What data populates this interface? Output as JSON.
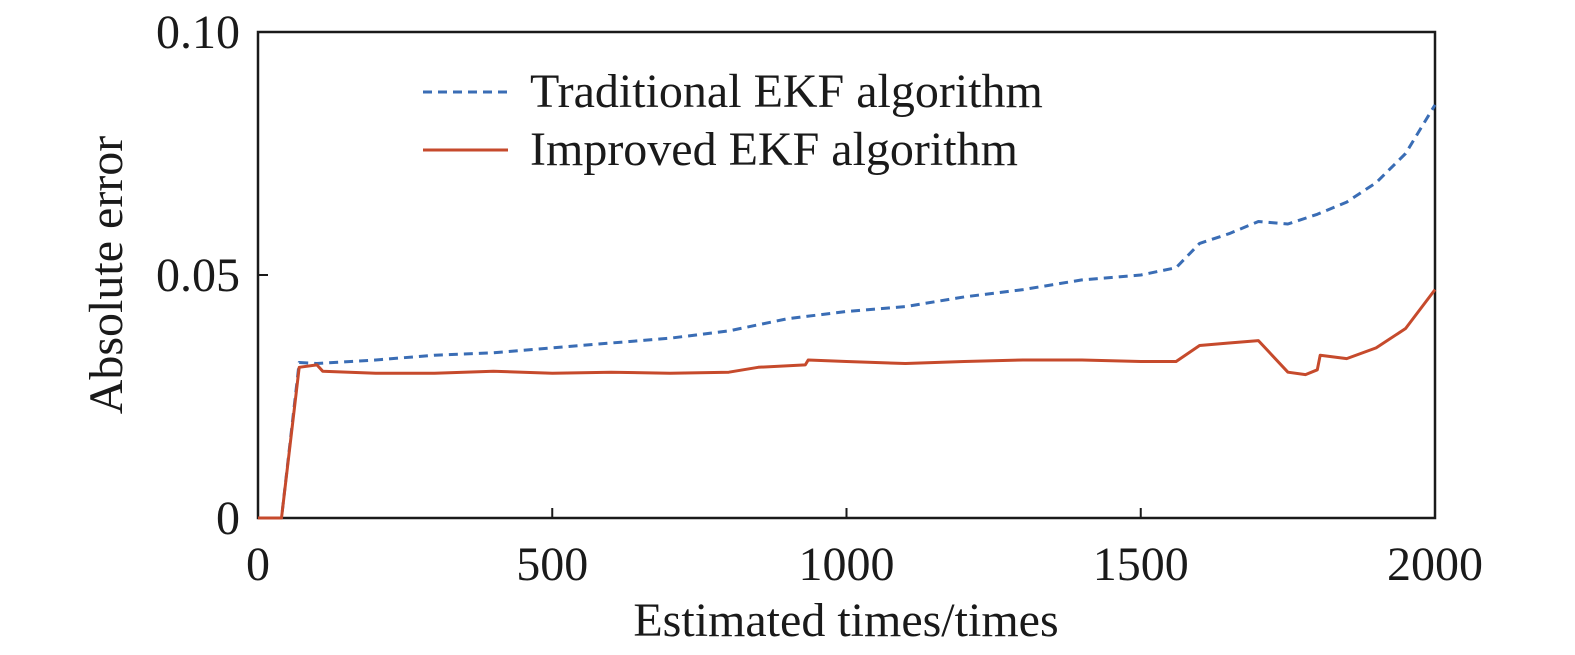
{
  "chart_data": {
    "type": "line",
    "title": "",
    "xlabel": "Estimated times/times",
    "ylabel": "Absolute error",
    "xlim": [
      0,
      2000
    ],
    "ylim": [
      0,
      0.1
    ],
    "xticks": [
      0,
      500,
      1000,
      1500,
      2000
    ],
    "xtick_labels": [
      "0",
      "500",
      "1000",
      "1500",
      "2000"
    ],
    "yticks": [
      0,
      0.05,
      0.1
    ],
    "ytick_labels": [
      "0",
      "0.05",
      "0.10"
    ],
    "grid": false,
    "legend_position": "top-center",
    "series": [
      {
        "name": "Traditional EKF algorithm",
        "color": "#3a6db5",
        "style": "dashed",
        "x": [
          0,
          40,
          70,
          100,
          200,
          300,
          400,
          500,
          600,
          700,
          800,
          900,
          1000,
          1100,
          1200,
          1300,
          1400,
          1500,
          1560,
          1600,
          1650,
          1700,
          1750,
          1800,
          1850,
          1900,
          1950,
          2000
        ],
        "y": [
          0,
          0,
          0.032,
          0.0318,
          0.0325,
          0.0335,
          0.034,
          0.035,
          0.036,
          0.037,
          0.0385,
          0.041,
          0.0425,
          0.0435,
          0.0455,
          0.047,
          0.049,
          0.05,
          0.0515,
          0.0565,
          0.0585,
          0.061,
          0.0605,
          0.0625,
          0.065,
          0.069,
          0.075,
          0.085
        ]
      },
      {
        "name": "Improved EKF algorithm",
        "color": "#c64a2c",
        "style": "solid",
        "x": [
          0,
          40,
          70,
          100,
          110,
          200,
          300,
          400,
          500,
          600,
          700,
          800,
          850,
          930,
          935,
          1000,
          1100,
          1200,
          1300,
          1400,
          1500,
          1560,
          1600,
          1650,
          1700,
          1750,
          1780,
          1800,
          1805,
          1850,
          1900,
          1950,
          2000
        ],
        "y": [
          0,
          0,
          0.031,
          0.0315,
          0.0302,
          0.0298,
          0.0298,
          0.0302,
          0.0298,
          0.03,
          0.0298,
          0.03,
          0.031,
          0.0315,
          0.0325,
          0.0322,
          0.0318,
          0.0322,
          0.0325,
          0.0325,
          0.0322,
          0.0322,
          0.0355,
          0.036,
          0.0365,
          0.03,
          0.0295,
          0.0305,
          0.0335,
          0.0328,
          0.035,
          0.039,
          0.047
        ]
      }
    ]
  }
}
